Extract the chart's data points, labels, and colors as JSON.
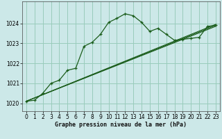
{
  "background_color": "#cce8e8",
  "grid_color": "#99ccbb",
  "line_color": "#1a5c1a",
  "title": "Graphe pression niveau de la mer (hPa)",
  "xlim": [
    -0.5,
    23.5
  ],
  "ylim": [
    1019.6,
    1025.1
  ],
  "yticks": [
    1020,
    1021,
    1022,
    1023,
    1024
  ],
  "xticks": [
    0,
    1,
    2,
    3,
    4,
    5,
    6,
    7,
    8,
    9,
    10,
    11,
    12,
    13,
    14,
    15,
    16,
    17,
    18,
    19,
    20,
    21,
    22,
    23
  ],
  "series1_x": [
    0,
    1,
    2,
    3,
    4,
    5,
    6,
    7,
    8,
    9,
    10,
    11,
    12,
    13,
    14,
    15,
    16,
    17,
    18,
    19,
    20,
    21,
    22,
    23
  ],
  "series1_y": [
    1020.1,
    1020.15,
    1020.5,
    1021.0,
    1021.15,
    1021.65,
    1021.75,
    1022.85,
    1023.05,
    1023.45,
    1024.05,
    1024.25,
    1024.48,
    1024.38,
    1024.05,
    1023.6,
    1023.75,
    1023.45,
    1023.15,
    1023.2,
    1023.25,
    1023.3,
    1023.85,
    1023.9
  ],
  "series2_x": [
    0,
    23
  ],
  "series2_y": [
    1020.1,
    1023.85
  ],
  "series3_x": [
    0,
    23
  ],
  "series3_y": [
    1020.1,
    1023.9
  ],
  "series4_x": [
    0,
    23
  ],
  "series4_y": [
    1020.1,
    1023.95
  ],
  "title_fontsize": 6.0,
  "tick_fontsize": 5.5
}
